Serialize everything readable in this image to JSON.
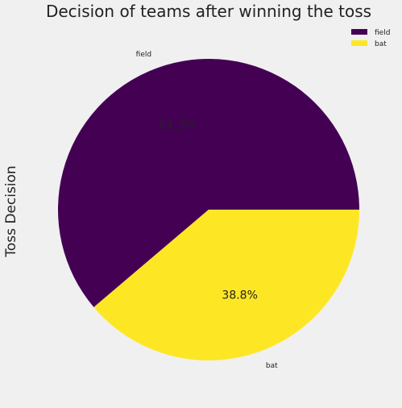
{
  "chart_data": {
    "type": "pie",
    "title": "Decision of teams after winning the toss",
    "ylabel": "Toss Decision",
    "slices": [
      {
        "label": "field",
        "value": 61.2,
        "pct_label": "61.2%",
        "color": "#440154"
      },
      {
        "label": "bat",
        "value": 38.8,
        "pct_label": "38.8%",
        "color": "#fde725"
      }
    ],
    "legend": {
      "placement": "top-right",
      "entries": [
        "field",
        "bat"
      ]
    },
    "start_angle_deg": 0,
    "direction": "counterclockwise"
  },
  "colors": {
    "background": "#f0f0f0"
  }
}
